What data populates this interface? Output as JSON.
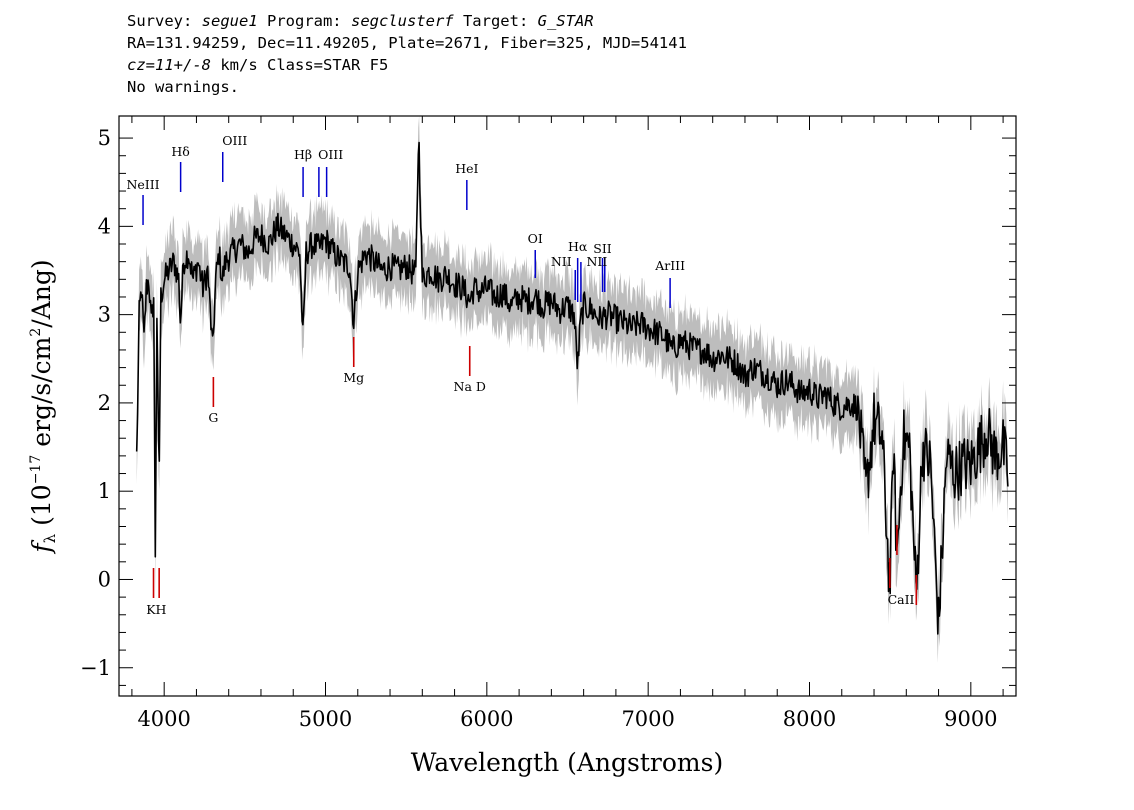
{
  "header": {
    "line1": {
      "survey_label": "Survey: ",
      "survey": "segue1",
      "program_label": " Program: ",
      "program": "segclusterf",
      "target_label": " Target: ",
      "target": "G_STAR"
    },
    "line2": "RA=131.94259, Dec=11.49205, Plate=2671, Fiber=325, MJD=54141",
    "line3": {
      "cz_label": "cz=",
      "cz": "11+/-8",
      "rest": " km/s Class=STAR F5"
    },
    "line4": "No warnings."
  },
  "colors": {
    "flux": "#000000",
    "error_band": "#bdbdbd",
    "emission_line": "#0000cc",
    "absorption_line": "#cc0000",
    "background": "#ffffff"
  },
  "chart_data": {
    "type": "line",
    "xlabel": "Wavelength (Angstroms)",
    "ylabel_prefix": "f",
    "ylabel_sub": "λ",
    "ylabel_unit_open": " (10",
    "ylabel_exp": "−17",
    "ylabel_mid": " erg/s/cm",
    "ylabel_sq": "2",
    "ylabel_end": "/Ang)",
    "xlim": [
      3720,
      9280
    ],
    "ylim": [
      -1.32,
      5.25
    ],
    "xticks": [
      4000,
      5000,
      6000,
      7000,
      8000,
      9000
    ],
    "yticks": [
      -1,
      0,
      1,
      2,
      3,
      4,
      5
    ],
    "ytick_labels": [
      "−1",
      "0",
      "1",
      "2",
      "3",
      "4",
      "5"
    ],
    "series": [
      {
        "role": "flux",
        "x": [
          3830,
          3845,
          3860,
          3875,
          3890,
          3905,
          3920,
          3935,
          3945,
          3955,
          3968,
          3980,
          4000,
          4030,
          4060,
          4090,
          4101,
          4120,
          4150,
          4180,
          4210,
          4240,
          4270,
          4300,
          4320,
          4340,
          4360,
          4380,
          4420,
          4470,
          4520,
          4560,
          4600,
          4650,
          4700,
          4750,
          4800,
          4840,
          4861,
          4880,
          4920,
          4960,
          5000,
          5050,
          5100,
          5150,
          5175,
          5200,
          5250,
          5300,
          5350,
          5400,
          5450,
          5500,
          5560,
          5577,
          5600,
          5650,
          5700,
          5750,
          5800,
          5850,
          5893,
          5920,
          5960,
          6000,
          6050,
          6100,
          6150,
          6200,
          6250,
          6300,
          6350,
          6400,
          6450,
          6500,
          6540,
          6563,
          6580,
          6600,
          6650,
          6700,
          6750,
          6800,
          6850,
          6900,
          6950,
          7000,
          7050,
          7100,
          7150,
          7200,
          7250,
          7300,
          7350,
          7400,
          7450,
          7500,
          7550,
          7600,
          7650,
          7700,
          7750,
          7800,
          7850,
          7900,
          7950,
          8000,
          8050,
          8100,
          8150,
          8200,
          8250,
          8300,
          8350,
          8400,
          8450,
          8498,
          8520,
          8542,
          8580,
          8620,
          8662,
          8700,
          8750,
          8800,
          8850,
          8900,
          8950,
          9000,
          9050,
          9100,
          9150,
          9200,
          9230
        ],
        "y": [
          1.4,
          3.0,
          3.3,
          2.7,
          3.3,
          3.4,
          2.9,
          3.2,
          0.3,
          3.0,
          1.0,
          3.2,
          3.4,
          3.5,
          3.6,
          3.4,
          2.9,
          3.6,
          3.7,
          3.4,
          3.6,
          3.3,
          3.5,
          2.6,
          3.4,
          3.7,
          3.4,
          3.6,
          3.7,
          3.8,
          3.7,
          3.85,
          3.9,
          3.8,
          4.0,
          3.9,
          3.8,
          3.7,
          2.7,
          3.7,
          3.8,
          3.75,
          3.85,
          3.7,
          3.6,
          3.55,
          2.9,
          3.5,
          3.7,
          3.6,
          3.5,
          3.55,
          3.5,
          3.55,
          3.45,
          5.1,
          3.4,
          3.5,
          3.4,
          3.45,
          3.35,
          3.3,
          3.15,
          3.3,
          3.25,
          3.3,
          3.2,
          3.25,
          3.1,
          3.2,
          3.15,
          3.2,
          3.1,
          3.15,
          3.05,
          3.1,
          3.0,
          2.4,
          2.9,
          3.1,
          3.05,
          2.95,
          3.0,
          2.95,
          2.9,
          2.85,
          2.9,
          2.85,
          2.8,
          2.75,
          2.6,
          2.7,
          2.65,
          2.6,
          2.6,
          2.5,
          2.55,
          2.5,
          2.45,
          2.3,
          2.4,
          2.35,
          2.3,
          2.2,
          2.25,
          2.2,
          2.1,
          2.15,
          2.05,
          2.1,
          2.0,
          1.95,
          2.0,
          1.95,
          1.0,
          1.8,
          1.6,
          -0.1,
          1.5,
          0.2,
          1.6,
          1.5,
          -0.2,
          1.5,
          1.3,
          -0.5,
          1.4,
          1.2,
          1.3,
          1.3,
          1.5,
          1.7,
          1.4,
          1.5,
          1.2
        ]
      }
    ],
    "emission_lines": [
      {
        "label": "NeIII",
        "wavelength": 3869
      },
      {
        "label": "Hδ",
        "wavelength": 4102
      },
      {
        "label": "OIII",
        "wavelength": 4363
      },
      {
        "label": "Hβ",
        "wavelength": 4861
      },
      {
        "label": "OIII",
        "wavelength": 4959
      },
      {
        "label": "OIII",
        "wavelength": 5007
      },
      {
        "label": "HeI",
        "wavelength": 5876
      },
      {
        "label": "OI",
        "wavelength": 6300
      },
      {
        "label": "NII",
        "wavelength": 6548
      },
      {
        "label": "Hα",
        "wavelength": 6563
      },
      {
        "label": "NII",
        "wavelength": 6583
      },
      {
        "label": "SII",
        "wavelength": 6717
      },
      {
        "label": "SII",
        "wavelength": 6731
      },
      {
        "label": "ArIII",
        "wavelength": 7136
      }
    ],
    "absorption_lines": [
      {
        "label": "KH",
        "wavelengths": [
          3934,
          3969
        ]
      },
      {
        "label": "G",
        "wavelengths": [
          4305
        ]
      },
      {
        "label": "Mg",
        "wavelengths": [
          5175
        ]
      },
      {
        "label": "Na D",
        "wavelengths": [
          5894
        ]
      },
      {
        "label": "CaII",
        "wavelengths": [
          8498,
          8542,
          8662
        ]
      }
    ]
  }
}
